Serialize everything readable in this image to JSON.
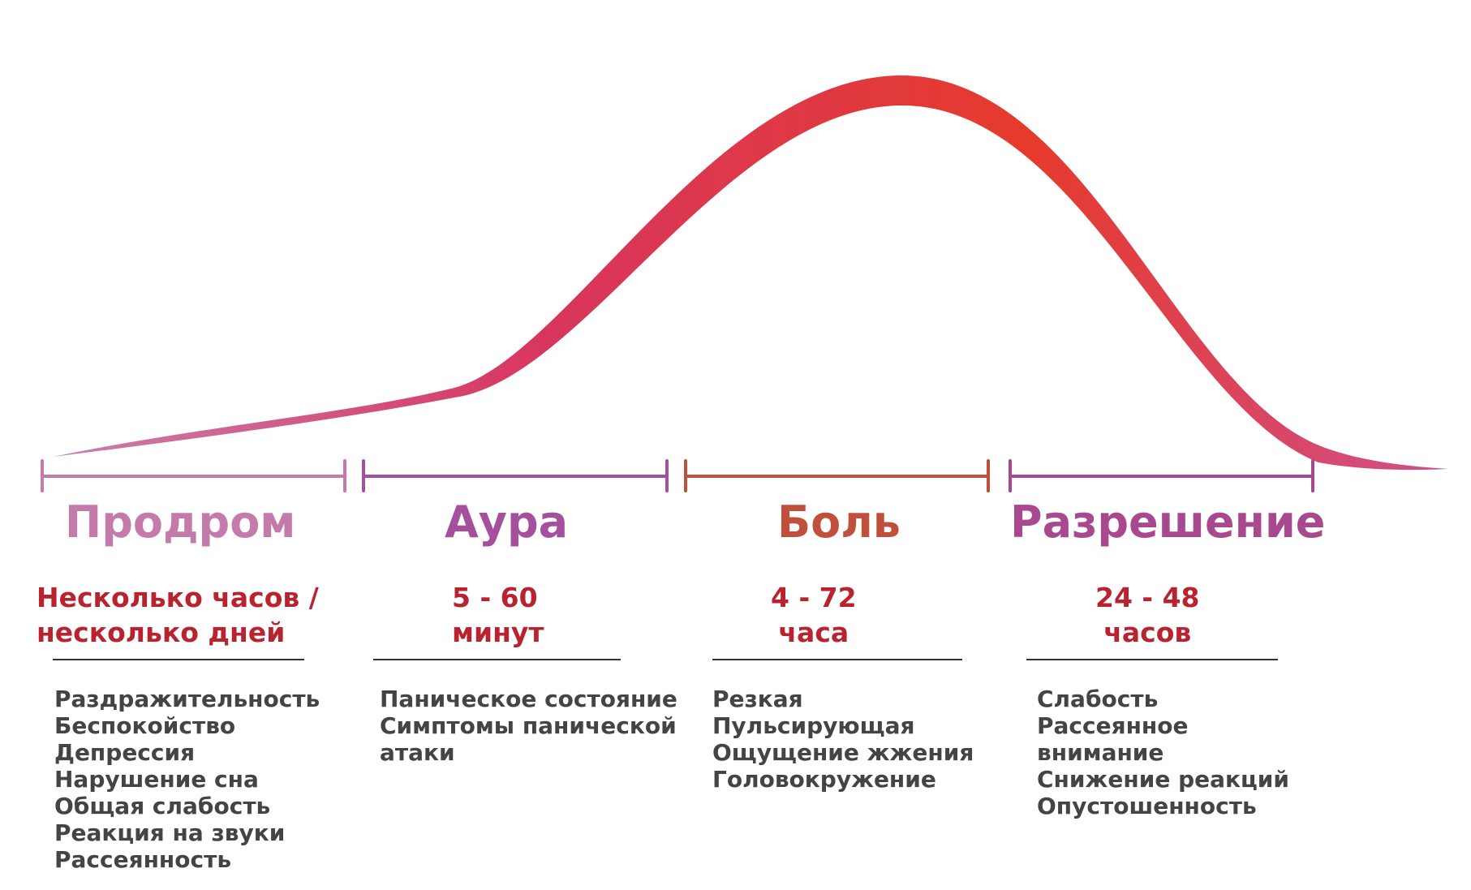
{
  "colors": {
    "prodrome": "#c47bab",
    "aura": "#a5509d",
    "pain": "#c0503b",
    "resolution": "#a8488e",
    "duration_text": "#b8232f",
    "symptom_text": "#444444",
    "curve_start": "#c97fae",
    "curve_mid": "#d8365f",
    "curve_peak": "#e63a2c",
    "curve_end": "#d04f8c"
  },
  "phases": [
    {
      "title": "Продром",
      "duration": [
        "Несколько часов /",
        "несколько дней"
      ],
      "symptoms": [
        "Раздражительность",
        "Беспокойство",
        "Депрессия",
        "Нарушение сна",
        "Общая слабость",
        "Реакция на звуки",
        "Рассеянность"
      ]
    },
    {
      "title": "Аура",
      "duration": [
        "5 - 60",
        "минут"
      ],
      "symptoms": [
        "Паническое состояние",
        "Симптомы панической",
        "атаки"
      ]
    },
    {
      "title": "Боль",
      "duration": [
        "4 - 72",
        "часа"
      ],
      "symptoms": [
        "Резкая",
        "Пульсирующая",
        "Ощущение жжения",
        "Головокружение"
      ]
    },
    {
      "title": "Разрешение",
      "duration": [
        "24 - 48",
        "часов"
      ],
      "symptoms": [
        "Слабость",
        "Рассеянное",
        "внимание",
        "Снижение реакций",
        "Опустошенность"
      ]
    }
  ]
}
